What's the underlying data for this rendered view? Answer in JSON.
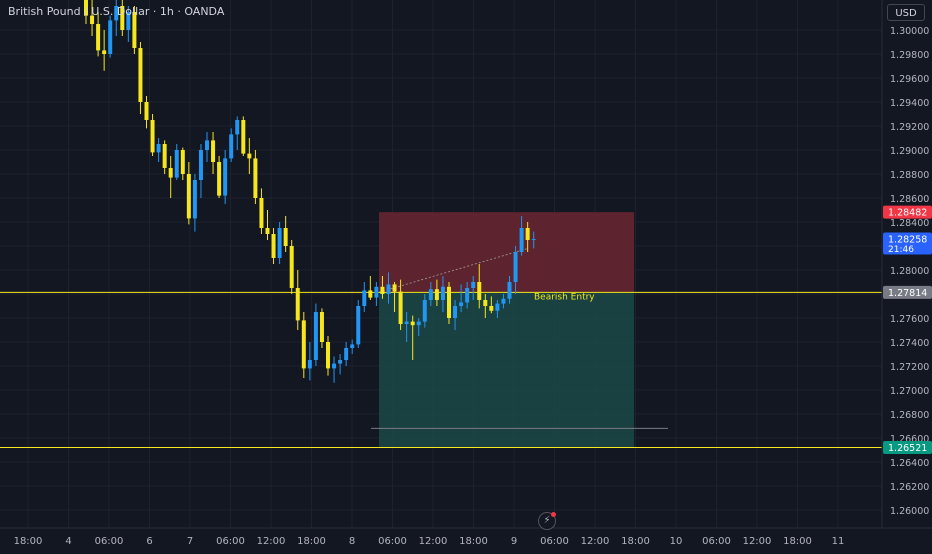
{
  "header": {
    "title": "British Pound / U.S. Dollar · 1h · OANDA",
    "currency_button": "USD"
  },
  "colors": {
    "background": "#131722",
    "grid": "#1e222d",
    "bull_candle": "#2196f3",
    "bear_candle": "#f5e61d",
    "horizontal_line": "#f5e61d",
    "stop_zone": "#6b2630",
    "target_zone": "#1c4946",
    "red_label": "#f23645",
    "blue_label": "#2962ff",
    "green_label": "#089981"
  },
  "icons": {
    "settings": "settings-clock-icon"
  },
  "chart_data": {
    "type": "candlestick",
    "title": "British Pound / U.S. Dollar · 1h · OANDA",
    "ylim": [
      1.2585,
      1.3025
    ],
    "y_ticks": [
      "1.30000",
      "1.29800",
      "1.29600",
      "1.29400",
      "1.29200",
      "1.29000",
      "1.28800",
      "1.28600",
      "1.28400",
      "1.28200",
      "1.28000",
      "1.27800",
      "1.27600",
      "1.27400",
      "1.27200",
      "1.27000",
      "1.26800",
      "1.26600",
      "1.26400",
      "1.26200",
      "1.26000"
    ],
    "x_ticks": [
      "18:00",
      "4",
      "06:00",
      "6",
      "7",
      "06:00",
      "12:00",
      "18:00",
      "8",
      "06:00",
      "12:00",
      "18:00",
      "9",
      "06:00",
      "12:00",
      "18:00",
      "10",
      "06:00",
      "12:00",
      "18:00",
      "11"
    ],
    "grid": true,
    "candles": [
      {
        "o": 1.3025,
        "h": 1.303,
        "l": 1.3005,
        "c": 1.3012
      },
      {
        "o": 1.3012,
        "h": 1.3025,
        "l": 1.2995,
        "c": 1.3005
      },
      {
        "o": 1.3005,
        "h": 1.3015,
        "l": 1.2978,
        "c": 1.2983
      },
      {
        "o": 1.2983,
        "h": 1.3,
        "l": 1.2966,
        "c": 1.298
      },
      {
        "o": 1.298,
        "h": 1.3012,
        "l": 1.2977,
        "c": 1.3008
      },
      {
        "o": 1.3008,
        "h": 1.3025,
        "l": 1.2995,
        "c": 1.302
      },
      {
        "o": 1.302,
        "h": 1.3025,
        "l": 1.2995,
        "c": 1.3
      },
      {
        "o": 1.3,
        "h": 1.302,
        "l": 1.299,
        "c": 1.3015
      },
      {
        "o": 1.3015,
        "h": 1.302,
        "l": 1.298,
        "c": 1.2985
      },
      {
        "o": 1.2985,
        "h": 1.299,
        "l": 1.293,
        "c": 1.294
      },
      {
        "o": 1.294,
        "h": 1.2945,
        "l": 1.2918,
        "c": 1.2925
      },
      {
        "o": 1.2925,
        "h": 1.293,
        "l": 1.2895,
        "c": 1.2898
      },
      {
        "o": 1.2898,
        "h": 1.291,
        "l": 1.289,
        "c": 1.2905
      },
      {
        "o": 1.2905,
        "h": 1.2908,
        "l": 1.288,
        "c": 1.2885
      },
      {
        "o": 1.2885,
        "h": 1.2895,
        "l": 1.286,
        "c": 1.2877
      },
      {
        "o": 1.2877,
        "h": 1.2905,
        "l": 1.2875,
        "c": 1.29
      },
      {
        "o": 1.29,
        "h": 1.2902,
        "l": 1.2875,
        "c": 1.288
      },
      {
        "o": 1.288,
        "h": 1.289,
        "l": 1.2838,
        "c": 1.2843
      },
      {
        "o": 1.2843,
        "h": 1.288,
        "l": 1.2832,
        "c": 1.2875
      },
      {
        "o": 1.2875,
        "h": 1.2905,
        "l": 1.286,
        "c": 1.29
      },
      {
        "o": 1.29,
        "h": 1.2915,
        "l": 1.289,
        "c": 1.2908
      },
      {
        "o": 1.2908,
        "h": 1.2915,
        "l": 1.288,
        "c": 1.289
      },
      {
        "o": 1.289,
        "h": 1.2895,
        "l": 1.286,
        "c": 1.2862
      },
      {
        "o": 1.2862,
        "h": 1.29,
        "l": 1.2855,
        "c": 1.2893
      },
      {
        "o": 1.2893,
        "h": 1.2918,
        "l": 1.289,
        "c": 1.2913
      },
      {
        "o": 1.2913,
        "h": 1.2928,
        "l": 1.29,
        "c": 1.2925
      },
      {
        "o": 1.2925,
        "h": 1.2928,
        "l": 1.2895,
        "c": 1.2897
      },
      {
        "o": 1.2897,
        "h": 1.291,
        "l": 1.288,
        "c": 1.2893
      },
      {
        "o": 1.2893,
        "h": 1.29,
        "l": 1.2855,
        "c": 1.286
      },
      {
        "o": 1.286,
        "h": 1.2868,
        "l": 1.283,
        "c": 1.2835
      },
      {
        "o": 1.2835,
        "h": 1.285,
        "l": 1.2825,
        "c": 1.283
      },
      {
        "o": 1.283,
        "h": 1.2835,
        "l": 1.2805,
        "c": 1.281
      },
      {
        "o": 1.281,
        "h": 1.284,
        "l": 1.2805,
        "c": 1.2835
      },
      {
        "o": 1.2835,
        "h": 1.2845,
        "l": 1.2815,
        "c": 1.282
      },
      {
        "o": 1.282,
        "h": 1.2825,
        "l": 1.278,
        "c": 1.2785
      },
      {
        "o": 1.2785,
        "h": 1.28,
        "l": 1.275,
        "c": 1.2758
      },
      {
        "o": 1.2758,
        "h": 1.2765,
        "l": 1.271,
        "c": 1.2718
      },
      {
        "o": 1.2718,
        "h": 1.274,
        "l": 1.2708,
        "c": 1.2725
      },
      {
        "o": 1.2725,
        "h": 1.2772,
        "l": 1.272,
        "c": 1.2765
      },
      {
        "o": 1.2765,
        "h": 1.2768,
        "l": 1.2735,
        "c": 1.274
      },
      {
        "o": 1.274,
        "h": 1.2745,
        "l": 1.2712,
        "c": 1.2718
      },
      {
        "o": 1.2718,
        "h": 1.2728,
        "l": 1.2706,
        "c": 1.2722
      },
      {
        "o": 1.2722,
        "h": 1.273,
        "l": 1.2713,
        "c": 1.2725
      },
      {
        "o": 1.2725,
        "h": 1.274,
        "l": 1.272,
        "c": 1.2735
      },
      {
        "o": 1.2735,
        "h": 1.2742,
        "l": 1.273,
        "c": 1.2738
      },
      {
        "o": 1.2738,
        "h": 1.2775,
        "l": 1.2735,
        "c": 1.277
      },
      {
        "o": 1.277,
        "h": 1.279,
        "l": 1.2765,
        "c": 1.2783
      },
      {
        "o": 1.2783,
        "h": 1.2795,
        "l": 1.2775,
        "c": 1.2777
      },
      {
        "o": 1.2777,
        "h": 1.279,
        "l": 1.277,
        "c": 1.2786
      },
      {
        "o": 1.2786,
        "h": 1.2795,
        "l": 1.2776,
        "c": 1.278
      },
      {
        "o": 1.278,
        "h": 1.2798,
        "l": 1.2772,
        "c": 1.2788
      },
      {
        "o": 1.2788,
        "h": 1.279,
        "l": 1.2765,
        "c": 1.2782
      },
      {
        "o": 1.2782,
        "h": 1.2792,
        "l": 1.275,
        "c": 1.2755
      },
      {
        "o": 1.2755,
        "h": 1.2765,
        "l": 1.274,
        "c": 1.2757
      },
      {
        "o": 1.2757,
        "h": 1.2762,
        "l": 1.2725,
        "c": 1.2754
      },
      {
        "o": 1.2754,
        "h": 1.276,
        "l": 1.2745,
        "c": 1.2757
      },
      {
        "o": 1.2757,
        "h": 1.278,
        "l": 1.2752,
        "c": 1.2775
      },
      {
        "o": 1.2775,
        "h": 1.279,
        "l": 1.277,
        "c": 1.2784
      },
      {
        "o": 1.2784,
        "h": 1.2792,
        "l": 1.277,
        "c": 1.2775
      },
      {
        "o": 1.2775,
        "h": 1.2795,
        "l": 1.2765,
        "c": 1.2786
      },
      {
        "o": 1.2786,
        "h": 1.279,
        "l": 1.2755,
        "c": 1.276
      },
      {
        "o": 1.276,
        "h": 1.2775,
        "l": 1.275,
        "c": 1.277
      },
      {
        "o": 1.277,
        "h": 1.2788,
        "l": 1.2765,
        "c": 1.2773
      },
      {
        "o": 1.2773,
        "h": 1.279,
        "l": 1.2768,
        "c": 1.2785
      },
      {
        "o": 1.2785,
        "h": 1.2795,
        "l": 1.2775,
        "c": 1.279
      },
      {
        "o": 1.279,
        "h": 1.2805,
        "l": 1.2768,
        "c": 1.2775
      },
      {
        "o": 1.2775,
        "h": 1.278,
        "l": 1.276,
        "c": 1.277
      },
      {
        "o": 1.277,
        "h": 1.2778,
        "l": 1.2764,
        "c": 1.2766
      },
      {
        "o": 1.2766,
        "h": 1.2775,
        "l": 1.276,
        "c": 1.2772
      },
      {
        "o": 1.2772,
        "h": 1.278,
        "l": 1.2768,
        "c": 1.2776
      },
      {
        "o": 1.2776,
        "h": 1.2795,
        "l": 1.2772,
        "c": 1.279
      },
      {
        "o": 1.279,
        "h": 1.282,
        "l": 1.278,
        "c": 1.2815
      },
      {
        "o": 1.2815,
        "h": 1.2845,
        "l": 1.2812,
        "c": 1.2835
      },
      {
        "o": 1.2835,
        "h": 1.284,
        "l": 1.2815,
        "c": 1.2825
      },
      {
        "o": 1.2825,
        "h": 1.2832,
        "l": 1.2818,
        "c": 1.28258
      }
    ],
    "horizontal_lines": [
      1.27814,
      1.26521
    ],
    "position": {
      "label": "Bearish Entry",
      "entry": 1.27814,
      "stop": 1.28482,
      "target": 1.26521
    },
    "trend_line": [
      1.2668,
      1.2668
    ],
    "price_labels": {
      "stop": "1.28482",
      "current": "1.28258",
      "countdown": "21:46",
      "entry": "1.27814",
      "target": "1.26521"
    }
  }
}
